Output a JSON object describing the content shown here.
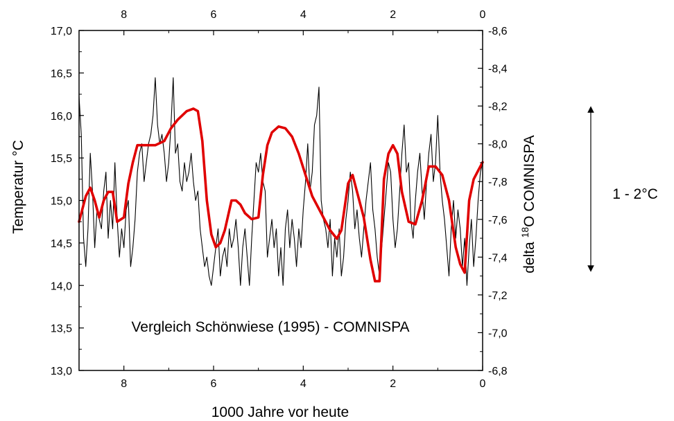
{
  "chart_data": {
    "type": "line",
    "annotation": "Vergleich Schönwiese (1995) - COMNISPA",
    "xlabel": "1000 Jahre vor heute",
    "ylabel_left": "Temperatur °C",
    "ylabel_right": {
      "prefix": "delta ",
      "superscript": "18",
      "suffix": "O  COMNISPA"
    },
    "range_label": "1 - 2°C",
    "xlim": [
      9,
      0
    ],
    "ylim_left": [
      13.0,
      17.0
    ],
    "ylim_right": [
      -6.8,
      -8.6
    ],
    "x_ticks": [
      8,
      6,
      4,
      2,
      0
    ],
    "x_tick_labels": [
      "8",
      "6",
      "4",
      "2",
      "0"
    ],
    "y_left_ticks": [
      13.0,
      13.5,
      14.0,
      14.5,
      15.0,
      15.5,
      16.0,
      16.5,
      17.0
    ],
    "y_left_tick_labels": [
      "13,0",
      "13,5",
      "14,0",
      "14,5",
      "15,0",
      "15,5",
      "16,0",
      "16,5",
      "17,0"
    ],
    "y_right_ticks": [
      -6.8,
      -7.0,
      -7.2,
      -7.4,
      -7.6,
      -7.8,
      -8.0,
      -8.2,
      -8.4,
      -8.6
    ],
    "y_right_tick_labels": [
      "-6,8",
      "-7,0",
      "-7,2",
      "-7,4",
      "-7,6",
      "-7,8",
      "-8,0",
      "-8,2",
      "-8,4",
      "-8,6"
    ],
    "grid": false,
    "series": [
      {
        "axis": "left",
        "color": "#e00000",
        "x": [
          9.0,
          8.85,
          8.75,
          8.65,
          8.55,
          8.45,
          8.35,
          8.25,
          8.15,
          8.0,
          7.9,
          7.8,
          7.7,
          7.6,
          7.5,
          7.3,
          7.1,
          6.95,
          6.8,
          6.6,
          6.45,
          6.35,
          6.25,
          6.15,
          6.05,
          5.95,
          5.85,
          5.75,
          5.6,
          5.5,
          5.4,
          5.3,
          5.15,
          5.0,
          4.9,
          4.8,
          4.7,
          4.55,
          4.4,
          4.25,
          4.1,
          3.95,
          3.8,
          3.6,
          3.4,
          3.25,
          3.15,
          3.0,
          2.9,
          2.8,
          2.65,
          2.5,
          2.4,
          2.3,
          2.2,
          2.1,
          2.0,
          1.9,
          1.8,
          1.65,
          1.5,
          1.35,
          1.2,
          1.05,
          0.9,
          0.75,
          0.6,
          0.5,
          0.4,
          0.3,
          0.2,
          0.1,
          0.0
        ],
        "y": [
          14.75,
          15.05,
          15.15,
          15.0,
          14.8,
          15.0,
          15.1,
          15.1,
          14.75,
          14.8,
          15.2,
          15.45,
          15.65,
          15.65,
          15.65,
          15.65,
          15.7,
          15.85,
          15.95,
          16.05,
          16.08,
          16.05,
          15.7,
          15.0,
          14.6,
          14.45,
          14.5,
          14.65,
          15.0,
          15.0,
          14.95,
          14.85,
          14.78,
          14.8,
          15.3,
          15.65,
          15.8,
          15.87,
          15.85,
          15.75,
          15.55,
          15.3,
          15.05,
          14.85,
          14.65,
          14.55,
          14.65,
          15.2,
          15.3,
          15.1,
          14.8,
          14.3,
          14.05,
          14.05,
          15.25,
          15.55,
          15.65,
          15.55,
          15.1,
          14.75,
          14.72,
          15.0,
          15.4,
          15.4,
          15.3,
          15.0,
          14.45,
          14.25,
          14.15,
          15.0,
          15.25,
          15.35,
          15.45
        ]
      },
      {
        "axis": "right",
        "color": "#000000",
        "x": [
          9.0,
          8.95,
          8.9,
          8.85,
          8.8,
          8.75,
          8.7,
          8.65,
          8.6,
          8.55,
          8.5,
          8.45,
          8.4,
          8.35,
          8.3,
          8.25,
          8.2,
          8.15,
          8.1,
          8.05,
          8.0,
          7.95,
          7.9,
          7.85,
          7.8,
          7.75,
          7.7,
          7.65,
          7.6,
          7.55,
          7.5,
          7.45,
          7.4,
          7.35,
          7.3,
          7.25,
          7.2,
          7.15,
          7.1,
          7.05,
          7.0,
          6.95,
          6.9,
          6.85,
          6.8,
          6.75,
          6.7,
          6.65,
          6.6,
          6.55,
          6.5,
          6.45,
          6.4,
          6.35,
          6.3,
          6.25,
          6.2,
          6.15,
          6.1,
          6.05,
          6.0,
          5.95,
          5.9,
          5.85,
          5.8,
          5.75,
          5.7,
          5.65,
          5.6,
          5.55,
          5.5,
          5.45,
          5.4,
          5.35,
          5.3,
          5.25,
          5.2,
          5.15,
          5.1,
          5.05,
          5.0,
          4.95,
          4.9,
          4.85,
          4.8,
          4.75,
          4.7,
          4.65,
          4.6,
          4.55,
          4.5,
          4.45,
          4.4,
          4.35,
          4.3,
          4.25,
          4.2,
          4.15,
          4.1,
          4.05,
          4.0,
          3.95,
          3.9,
          3.85,
          3.8,
          3.75,
          3.7,
          3.65,
          3.6,
          3.55,
          3.5,
          3.45,
          3.4,
          3.35,
          3.3,
          3.25,
          3.2,
          3.15,
          3.1,
          3.05,
          3.0,
          2.95,
          2.9,
          2.85,
          2.8,
          2.75,
          2.7,
          2.65,
          2.6,
          2.55,
          2.5,
          2.45,
          2.4,
          2.35,
          2.3,
          2.25,
          2.2,
          2.15,
          2.1,
          2.05,
          2.0,
          1.95,
          1.9,
          1.85,
          1.8,
          1.75,
          1.7,
          1.65,
          1.6,
          1.55,
          1.5,
          1.45,
          1.4,
          1.35,
          1.3,
          1.25,
          1.2,
          1.15,
          1.1,
          1.05,
          1.0,
          0.95,
          0.9,
          0.85,
          0.8,
          0.75,
          0.7,
          0.65,
          0.6,
          0.55,
          0.5,
          0.45,
          0.4,
          0.35,
          0.3,
          0.25,
          0.2,
          0.15,
          0.1,
          0.05,
          0.0
        ],
        "y": [
          -8.25,
          -8.05,
          -7.5,
          -7.35,
          -7.55,
          -7.95,
          -7.75,
          -7.45,
          -7.65,
          -7.6,
          -7.55,
          -7.75,
          -7.85,
          -7.5,
          -7.7,
          -7.55,
          -7.9,
          -7.6,
          -7.4,
          -7.55,
          -7.45,
          -7.65,
          -7.7,
          -7.35,
          -7.45,
          -7.6,
          -7.85,
          -7.95,
          -8.0,
          -7.8,
          -7.9,
          -8.0,
          -8.05,
          -8.15,
          -8.35,
          -8.1,
          -8.0,
          -8.05,
          -7.95,
          -7.8,
          -7.9,
          -8.1,
          -8.35,
          -7.95,
          -8.0,
          -7.8,
          -7.75,
          -7.9,
          -7.8,
          -7.85,
          -7.95,
          -7.8,
          -7.7,
          -7.75,
          -7.55,
          -7.45,
          -7.35,
          -7.4,
          -7.3,
          -7.25,
          -7.35,
          -7.45,
          -7.55,
          -7.3,
          -7.4,
          -7.45,
          -7.35,
          -7.55,
          -7.45,
          -7.5,
          -7.6,
          -7.45,
          -7.25,
          -7.45,
          -7.55,
          -7.4,
          -7.25,
          -7.5,
          -7.7,
          -7.9,
          -7.85,
          -7.95,
          -7.8,
          -7.75,
          -7.4,
          -7.5,
          -7.6,
          -7.45,
          -7.55,
          -7.3,
          -7.45,
          -7.25,
          -7.55,
          -7.65,
          -7.45,
          -7.6,
          -7.5,
          -7.35,
          -7.55,
          -7.45,
          -7.65,
          -7.8,
          -8.0,
          -7.75,
          -7.85,
          -8.1,
          -8.15,
          -8.3,
          -7.7,
          -7.6,
          -7.55,
          -7.45,
          -7.6,
          -7.3,
          -7.5,
          -7.4,
          -7.55,
          -7.3,
          -7.4,
          -7.6,
          -7.7,
          -7.85,
          -7.75,
          -7.55,
          -7.65,
          -7.5,
          -7.4,
          -7.55,
          -7.7,
          -7.8,
          -7.9,
          -7.65,
          -7.55,
          -7.4,
          -7.3,
          -7.45,
          -7.6,
          -7.75,
          -7.9,
          -7.85,
          -7.6,
          -7.45,
          -7.55,
          -7.75,
          -7.95,
          -8.1,
          -7.85,
          -7.9,
          -7.6,
          -7.5,
          -7.7,
          -7.85,
          -7.95,
          -7.75,
          -7.6,
          -7.8,
          -7.95,
          -8.05,
          -7.8,
          -7.9,
          -8.15,
          -7.85,
          -7.7,
          -7.6,
          -7.45,
          -7.3,
          -7.55,
          -7.7,
          -7.5,
          -7.65,
          -7.55,
          -7.35,
          -7.5,
          -7.25,
          -7.45,
          -7.6,
          -7.35,
          -7.5,
          -7.7,
          -7.85,
          -7.9
        ]
      }
    ]
  }
}
